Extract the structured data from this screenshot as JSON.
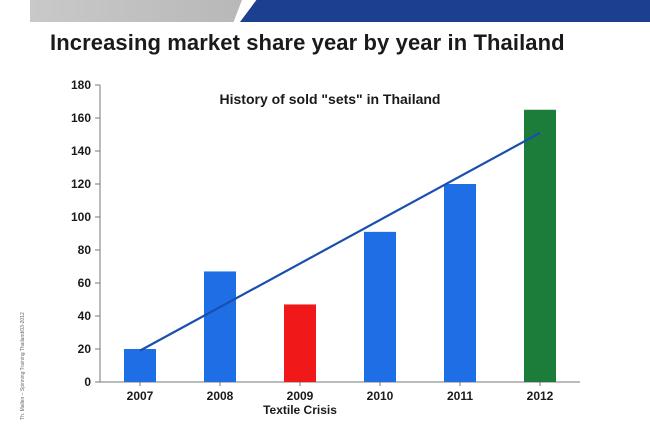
{
  "header": {
    "title": "Increasing market share year by year in Thailand",
    "side_note": "Th. Mallen – Spinning Training Thailand/03-2012"
  },
  "colors": {
    "band_gray": "#bdbdbd",
    "band_blue": "#1d3f8f",
    "bar_blue": "#1e6fe6",
    "bar_red": "#f01818",
    "bar_green": "#1c7d3a",
    "trend_line": "#1a4fb0"
  },
  "chart_data": {
    "type": "bar",
    "title": "History of sold \"sets\" in Thailand",
    "categories": [
      "2007",
      "2008",
      "2009",
      "2010",
      "2011",
      "2012"
    ],
    "values": [
      20,
      67,
      47,
      91,
      120,
      165
    ],
    "bar_colors": [
      "#1e6fe6",
      "#1e6fe6",
      "#f01818",
      "#1e6fe6",
      "#1e6fe6",
      "#1c7d3a"
    ],
    "ylim": [
      0,
      180
    ],
    "yticks": [
      0,
      20,
      40,
      60,
      80,
      100,
      120,
      140,
      160,
      180
    ],
    "xlabel": "",
    "ylabel": "",
    "annotations": [
      {
        "category": "2009",
        "text": "Textile Crisis"
      }
    ],
    "trend_line": {
      "from": {
        "x": "2007",
        "y": 19
      },
      "to": {
        "x": "2012",
        "y": 151
      }
    },
    "grid": false,
    "legend": "none"
  }
}
